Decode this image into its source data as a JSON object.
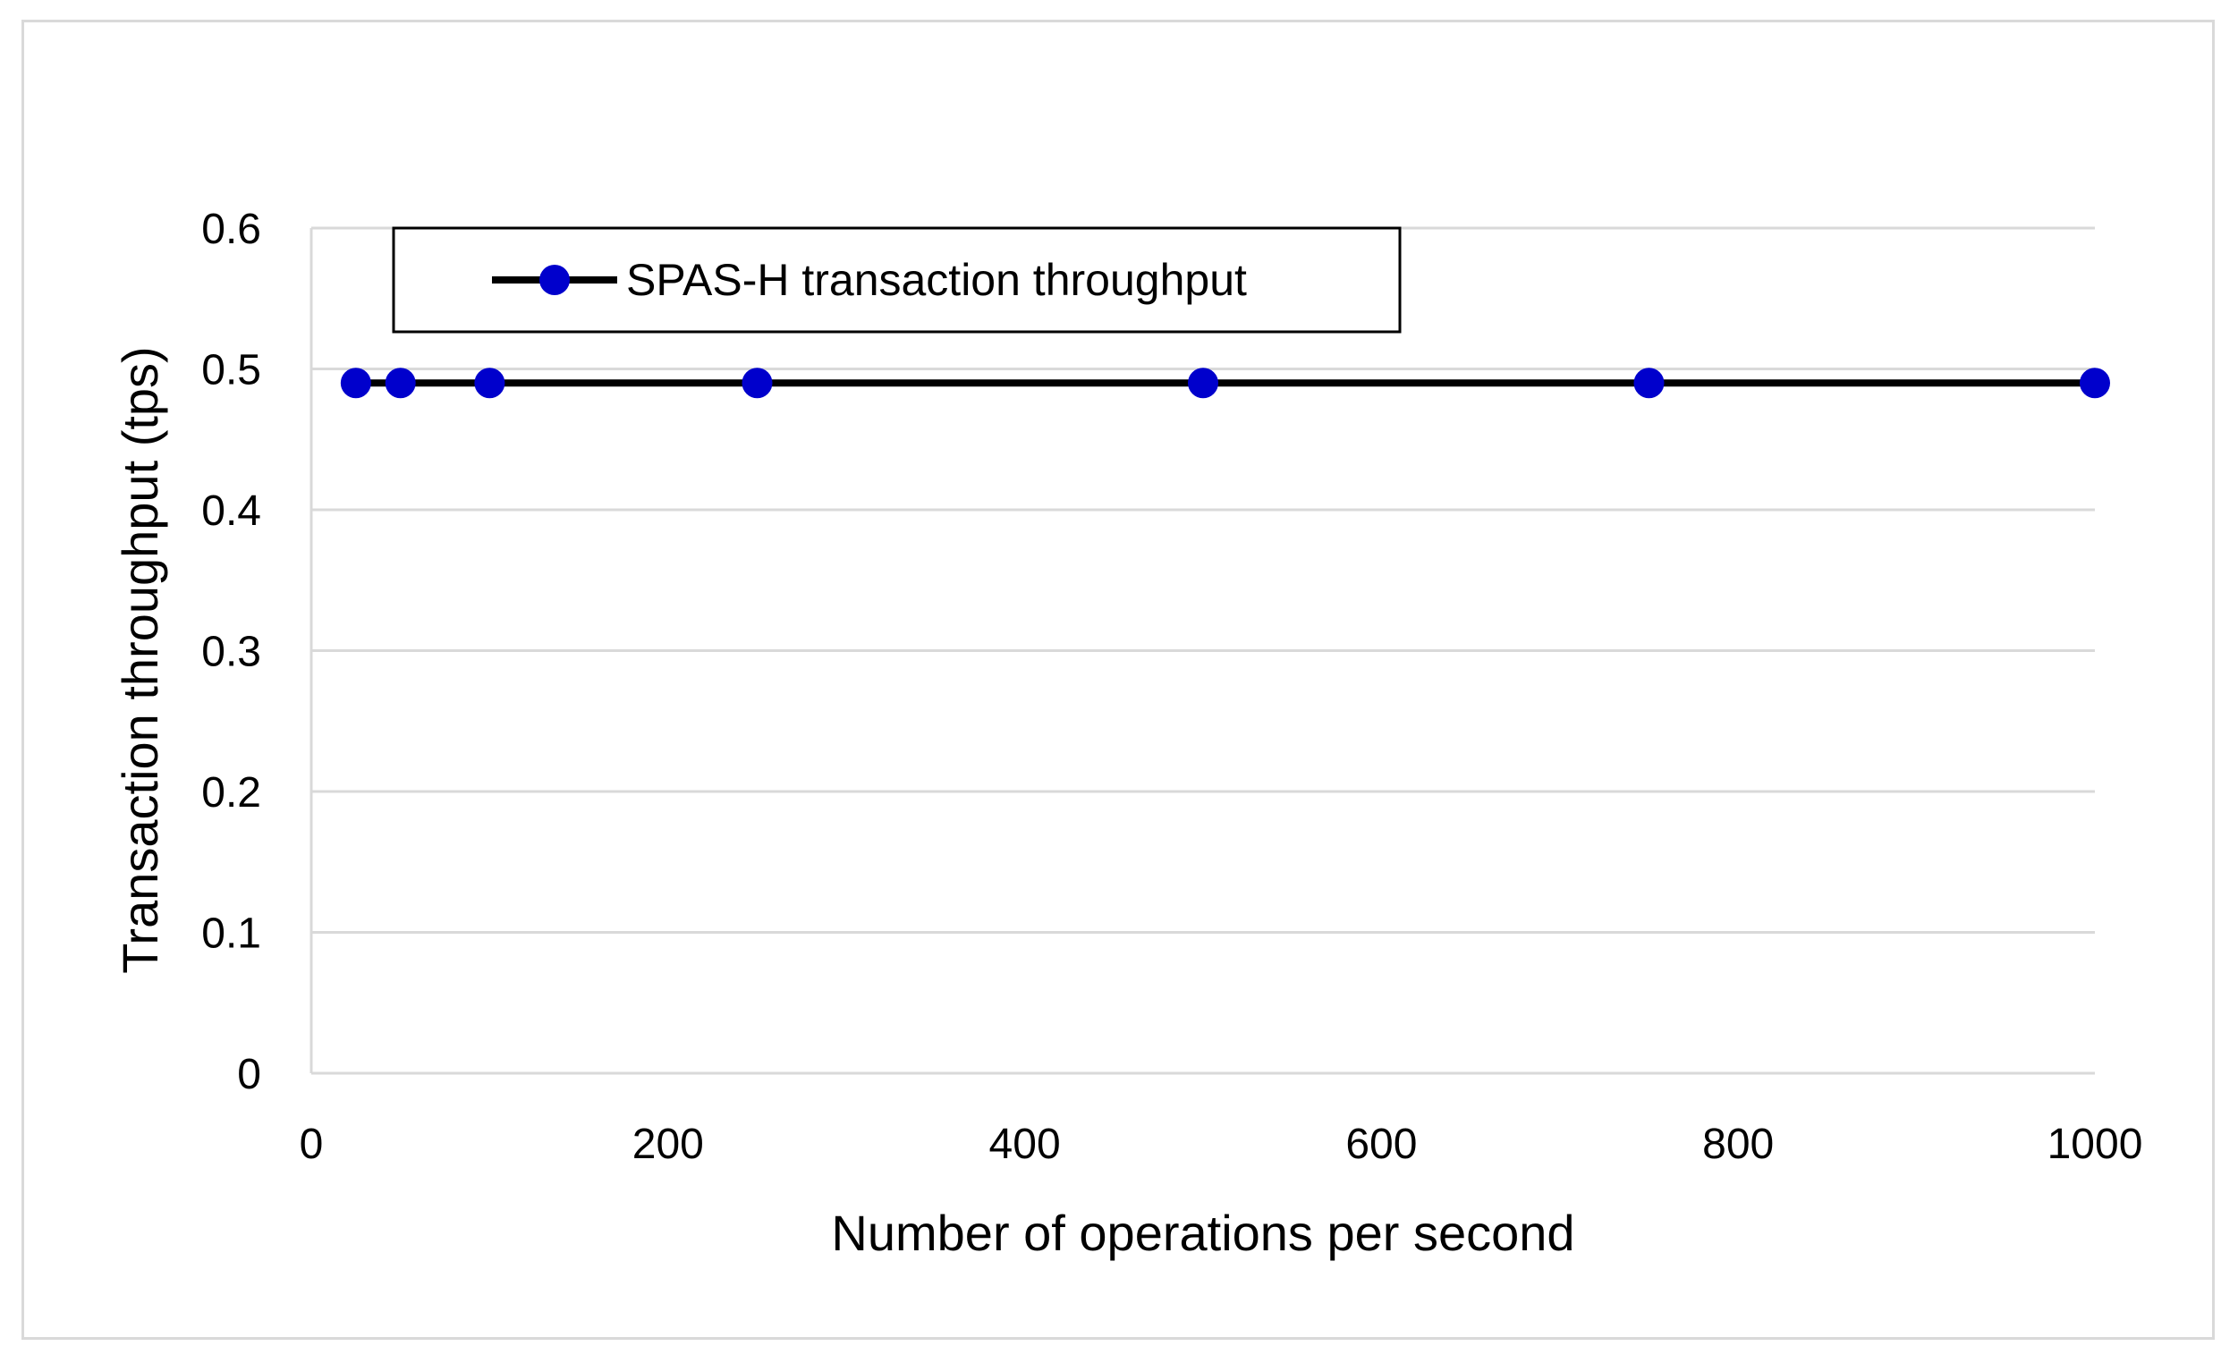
{
  "chart_data": {
    "type": "line",
    "title": "",
    "xlabel": "Number of operations per second",
    "ylabel": "Transaction throughput (tps)",
    "xlim": [
      0,
      1000
    ],
    "ylim": [
      0,
      0.6
    ],
    "xticks": [
      0,
      200,
      400,
      600,
      800,
      1000
    ],
    "xtick_labels": [
      "0",
      "200",
      "400",
      "600",
      "800",
      "1000"
    ],
    "yticks": [
      0,
      0.1,
      0.2,
      0.3,
      0.4,
      0.5,
      0.6
    ],
    "ytick_labels": [
      "0",
      "0.1",
      "0.2",
      "0.3",
      "0.4",
      "0.5",
      "0.6"
    ],
    "grid": "horizontal",
    "legend_position": "top-left",
    "series": [
      {
        "name": "SPAS-H transaction throughput",
        "line_color": "#000000",
        "marker_color": "#0000cc",
        "marker": "circle",
        "x": [
          25,
          50,
          100,
          250,
          500,
          750,
          1000
        ],
        "y": [
          0.49,
          0.49,
          0.49,
          0.49,
          0.49,
          0.49,
          0.49
        ]
      }
    ]
  }
}
